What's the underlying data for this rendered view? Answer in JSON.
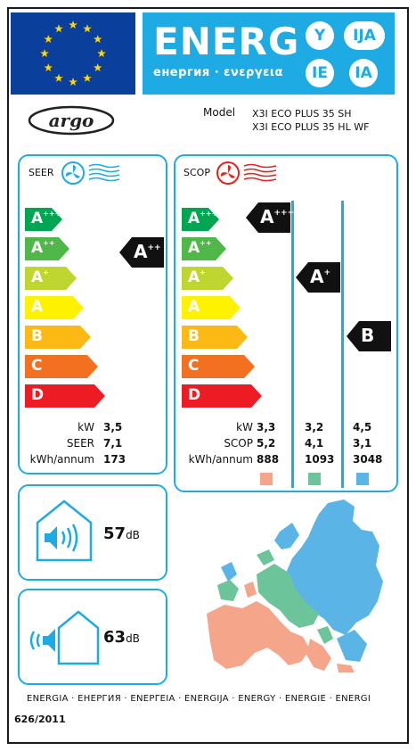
{
  "header": {
    "energy_word": "ENERG",
    "energy_sub": "енергия · ενεργεια",
    "lang_circles": [
      "Y",
      "IJA",
      "IE",
      "IA"
    ],
    "flag_color": "#0b3f9c",
    "star_color": "#ffd600",
    "energy_color": "#1eabe3"
  },
  "brand": {
    "logo_text": "argo",
    "model_label": "Model",
    "models": [
      "X3I ECO PLUS 35 SH",
      "X3I ECO PLUS 35 HL WF"
    ]
  },
  "scale": {
    "classes": [
      {
        "letter": "A",
        "sup": "+++",
        "color": "#00a651"
      },
      {
        "letter": "A",
        "sup": "++",
        "color": "#50b848"
      },
      {
        "letter": "A",
        "sup": "+",
        "color": "#bed630"
      },
      {
        "letter": "A",
        "sup": "",
        "color": "#fff200"
      },
      {
        "letter": "B",
        "sup": "",
        "color": "#fdb913"
      },
      {
        "letter": "C",
        "sup": "",
        "color": "#f37021"
      },
      {
        "letter": "D",
        "sup": "",
        "color": "#ed1c24"
      }
    ]
  },
  "seer": {
    "title": "SEER",
    "rating": {
      "letter": "A",
      "sup": "++"
    },
    "rows": [
      {
        "label": "kW",
        "value": "3,5"
      },
      {
        "label": "SEER",
        "value": "7,1"
      },
      {
        "label": "kWh/annum",
        "value": "173"
      }
    ]
  },
  "scop": {
    "title": "SCOP",
    "ratings": [
      {
        "letter": "A",
        "sup": "+++"
      },
      {
        "letter": "A",
        "sup": "+"
      },
      {
        "letter": "B",
        "sup": ""
      }
    ],
    "row_labels": [
      "kW",
      "SCOP",
      "kWh/annum"
    ],
    "columns": [
      {
        "values": [
          "3,3",
          "5,2",
          "888"
        ],
        "color": "#f4a58a"
      },
      {
        "values": [
          "3,2",
          "4,1",
          "1093"
        ],
        "color": "#6cc49a"
      },
      {
        "values": [
          "4,5",
          "3,1",
          "3048"
        ],
        "color": "#5ab4e5"
      }
    ]
  },
  "sound": {
    "indoor": {
      "value": "57",
      "unit": "dB"
    },
    "outdoor": {
      "value": "63",
      "unit": "dB"
    }
  },
  "footer": {
    "languages": "ENERGIA · ЕНЕРГИЯ · ΕΝΕΡΓΕΙΑ · ENERGIJA · ENERGY · ENERGIE · ENERGI",
    "regulation": "626/2011"
  }
}
